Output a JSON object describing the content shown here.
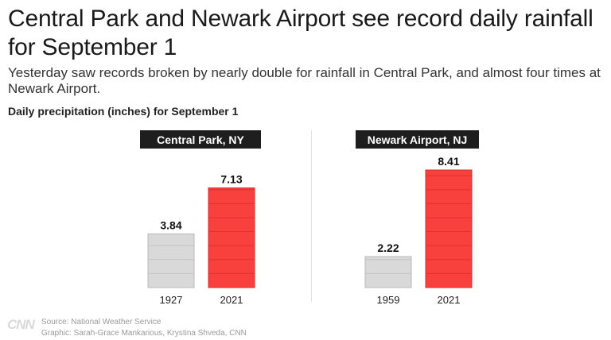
{
  "title": "Central Park and Newark Airport see record daily rainfall for September 1",
  "subtitle": "Yesterday saw records broken by nearly double for rainfall in Central Park, and almost four times at Newark Airport.",
  "logo": "CNN",
  "footer": {
    "source": "Source: National Weather Service",
    "graphic": "Graphic: Sarah-Grace Mankarious, Krystina Shveda, CNN"
  },
  "colors": {
    "old_bar": "#d9d9d9",
    "new_bar": "#f8403d",
    "label_bg": "#1e1e1e"
  },
  "chart_data": [
    {
      "type": "bar",
      "title": "Central Park, NY",
      "ylabel": "Daily precipitation (inches) for September 1",
      "categories": [
        "1927",
        "2021"
      ],
      "values": [
        3.84,
        7.13
      ],
      "value_labels": [
        "3.84",
        "7.13"
      ],
      "ylim": [
        0,
        8.41
      ],
      "grid": false,
      "legend": "none"
    },
    {
      "type": "bar",
      "title": "Newark Airport, NJ",
      "ylabel": "Daily precipitation (inches) for September 1",
      "categories": [
        "1959",
        "2021"
      ],
      "values": [
        2.22,
        8.41
      ],
      "value_labels": [
        "2.22",
        "8.41"
      ],
      "ylim": [
        0,
        8.41
      ],
      "grid": false,
      "legend": "none"
    }
  ]
}
